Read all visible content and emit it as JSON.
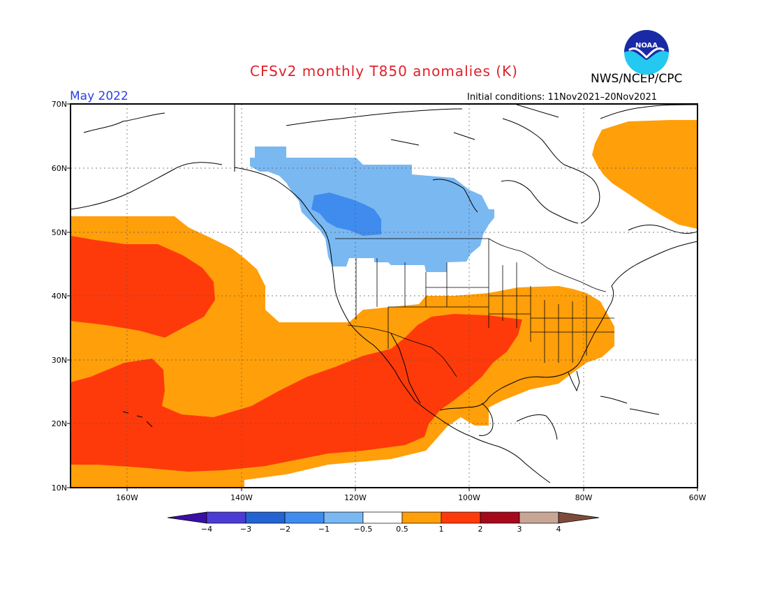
{
  "title": "CFSv2 monthly T850 anomalies (K)",
  "agency": "NWS/NCEP/CPC",
  "period": "May 2022",
  "initial_conditions": "Initial conditions: 11Nov2021–20Nov2021",
  "logo_text": "NOAA",
  "lat_labels": [
    "70N",
    "60N",
    "50N",
    "40N",
    "30N",
    "20N",
    "10N"
  ],
  "lon_labels": [
    "160W",
    "140W",
    "120W",
    "100W",
    "80W",
    "60W"
  ],
  "colorbar": {
    "tick_labels": [
      "−4",
      "−3",
      "−2",
      "−1",
      "−0.5",
      "0.5",
      "1",
      "2",
      "3",
      "4"
    ],
    "colors": [
      "#3a0fa6",
      "#4b3dd4",
      "#2464d2",
      "#3f8cee",
      "#7ab8f2",
      "#ffffff",
      "#ff9f0a",
      "#ff3a0a",
      "#a6091a",
      "#c8a696",
      "#7e4a3a"
    ]
  },
  "map": {
    "lon_range": [
      -170,
      -60
    ],
    "lat_range": [
      10,
      70
    ],
    "anomaly_colors": {
      "cold_light": "#7ab8f2",
      "cold_medium": "#3f8cee",
      "warm_1": "#ff9f0a",
      "warm_2": "#ff3a0a"
    }
  }
}
